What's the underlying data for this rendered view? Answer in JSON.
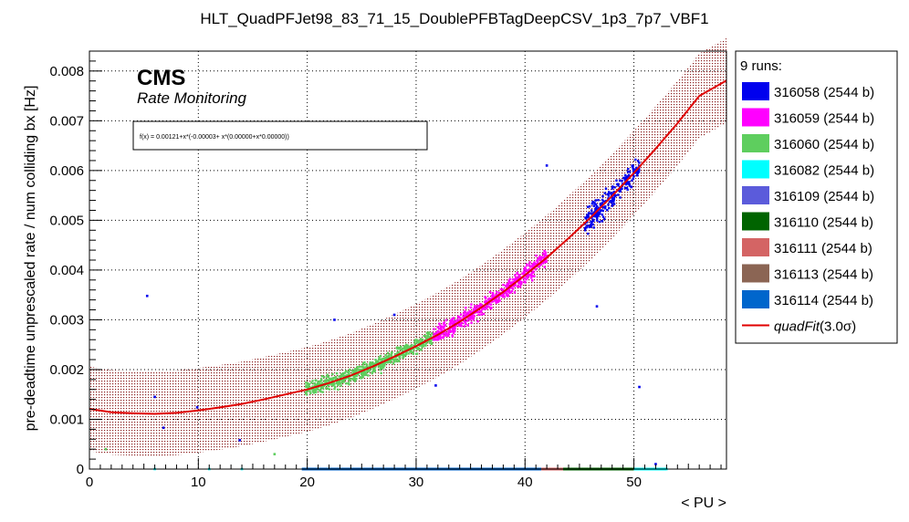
{
  "chart_data": {
    "type": "scatter",
    "title": "HLT_QuadPFJet98_83_71_15_DoublePFBTagDeepCSV_1p3_7p7_VBF1",
    "xlabel": "< PU >",
    "ylabel": "pre-deadtime unprescaled rate / num colliding bx [Hz]",
    "xlim": [
      0,
      58.5
    ],
    "ylim": [
      0,
      0.0084
    ],
    "x_ticks": [
      0,
      10,
      20,
      30,
      40,
      50
    ],
    "y_ticks": [
      0,
      0.001,
      0.002,
      0.003,
      0.004,
      0.005,
      0.006,
      0.007,
      0.008
    ],
    "x_tick_labels": [
      "0",
      "10",
      "20",
      "30",
      "40",
      "50"
    ],
    "y_tick_labels": [
      "0",
      "0.001",
      "0.002",
      "0.003",
      "0.004",
      "0.005",
      "0.006",
      "0.007",
      "0.008"
    ],
    "grid": true,
    "legend_position": "right",
    "cms_label": "CMS",
    "cms_sublabel": "Rate Monitoring",
    "fit_formula": "f(x) = 0.00121+x*(-0.00003+ x*(0.00000+x*0.00000))",
    "fit": {
      "name": "quadFit(3.0σ)",
      "name_prefix": "quadFit",
      "name_suffix": "(3.0σ)",
      "color": "#e00000",
      "band_color": "#8b2020",
      "curve": [
        [
          0,
          0.00121
        ],
        [
          2,
          0.00114
        ],
        [
          4,
          0.00112
        ],
        [
          6,
          0.00111
        ],
        [
          8,
          0.00113
        ],
        [
          10,
          0.00118
        ],
        [
          12,
          0.00124
        ],
        [
          14,
          0.00131
        ],
        [
          16,
          0.0014
        ],
        [
          18,
          0.0015
        ],
        [
          20,
          0.0016
        ],
        [
          22,
          0.00173
        ],
        [
          24,
          0.00188
        ],
        [
          26,
          0.00206
        ],
        [
          28,
          0.00226
        ],
        [
          30,
          0.00247
        ],
        [
          32,
          0.0027
        ],
        [
          34,
          0.00296
        ],
        [
          36,
          0.00325
        ],
        [
          38,
          0.00356
        ],
        [
          40,
          0.0039
        ],
        [
          42,
          0.00425
        ],
        [
          44,
          0.00464
        ],
        [
          46,
          0.00505
        ],
        [
          48,
          0.00549
        ],
        [
          50,
          0.00595
        ],
        [
          52,
          0.00644
        ],
        [
          54,
          0.00695
        ],
        [
          56,
          0.0075
        ],
        [
          58.5,
          0.00781
        ]
      ],
      "band_halfwidth": 0.00085
    },
    "legend_header": "9 runs:",
    "series": [
      {
        "name": "316058 (2544 b)",
        "color": "#0000ee",
        "clusters": [
          [
            45.5,
            50.5,
            0.0039,
            0.0065
          ]
        ],
        "outliers": [
          [
            5.3,
            0.00348
          ],
          [
            6,
            0.00145
          ],
          [
            6.8,
            0.00083
          ],
          [
            9.9,
            0.00124
          ],
          [
            13.8,
            0.00058
          ],
          [
            22.5,
            0.003
          ],
          [
            28,
            0.0031
          ],
          [
            31.8,
            0.00168
          ],
          [
            42,
            0.0061
          ],
          [
            46.6,
            0.00327
          ],
          [
            50.5,
            0.00165
          ],
          [
            52,
            0.0001
          ]
        ]
      },
      {
        "name": "316059 (2544 b)",
        "color": "#ff00ff",
        "clusters": [
          [
            31.5,
            42,
            0.0026,
            0.0044
          ]
        ],
        "outliers": []
      },
      {
        "name": "316060 (2544 b)",
        "color": "#5ece5e",
        "clusters": [
          [
            19.8,
            31.5,
            0.0013,
            0.0029
          ]
        ],
        "outliers": [
          [
            1.5,
            0.0004
          ],
          [
            17,
            0.0003
          ]
        ]
      },
      {
        "name": "316082 (2544 b)",
        "color": "#00ffff",
        "clusters": [],
        "outliers": [
          [
            6,
            0.0
          ],
          [
            11,
            0.0
          ],
          [
            14,
            0.0
          ],
          [
            50,
            0.0
          ],
          [
            53,
            0.0
          ]
        ]
      },
      {
        "name": "316109 (2544 b)",
        "color": "#5b5bdb",
        "clusters": [],
        "outliers": []
      },
      {
        "name": "316110 (2544 b)",
        "color": "#006400",
        "clusters": [],
        "outliers": []
      },
      {
        "name": "316111 (2544 b)",
        "color": "#d46464",
        "clusters": [],
        "outliers": []
      },
      {
        "name": "316113 (2544 b)",
        "color": "#8b6554",
        "clusters": [],
        "outliers": []
      },
      {
        "name": "316114 (2544 b)",
        "color": "#0066cc",
        "clusters": [],
        "outliers": []
      }
    ],
    "zero_segments": [
      {
        "color": "#0066cc",
        "from": 19.5,
        "to": 41.5
      },
      {
        "color": "#d46464",
        "from": 41.5,
        "to": 43.5
      },
      {
        "color": "#006400",
        "from": 43.5,
        "to": 50
      },
      {
        "color": "#00ffff",
        "from": 50,
        "to": 53
      }
    ]
  }
}
